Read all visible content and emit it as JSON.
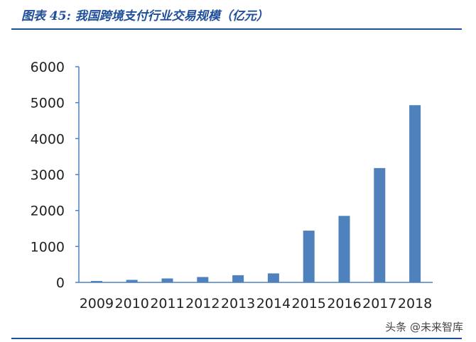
{
  "title": "图表 45:  我国跨境支付行业交易规模（亿元）",
  "watermark": "头条 @未来智库",
  "colors": {
    "bar": "#4f81bd",
    "axis": "#4f81bd",
    "text": "#222222",
    "title": "#1f4e9a"
  },
  "chart_data": {
    "type": "bar",
    "title": "图表 45:  我国跨境支付行业交易规模（亿元）",
    "xlabel": "",
    "ylabel": "",
    "categories": [
      "2009",
      "2010",
      "2011",
      "2012",
      "2013",
      "2014",
      "2015",
      "2016",
      "2017",
      "2018"
    ],
    "values": [
      40,
      70,
      110,
      150,
      200,
      250,
      1440,
      1850,
      3180,
      4930
    ],
    "ylim": [
      0,
      6000
    ],
    "yticks": [
      0,
      1000,
      2000,
      3000,
      4000,
      5000,
      6000
    ],
    "grid": false,
    "legend": "none"
  }
}
